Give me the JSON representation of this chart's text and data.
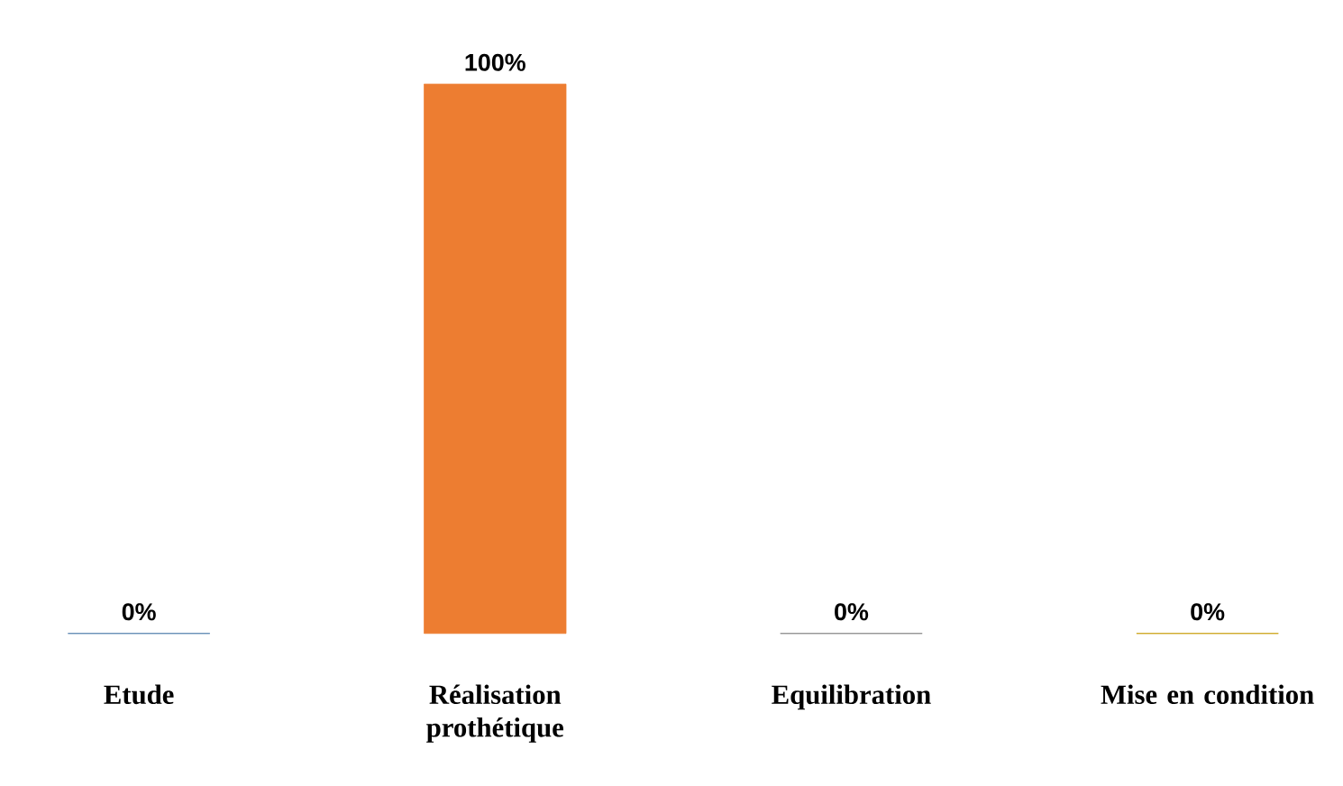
{
  "chart_data": {
    "type": "bar",
    "categories": [
      "Etude",
      "Réalisation prothétique",
      "Equilibration",
      "Mise en condition"
    ],
    "values": [
      0,
      100,
      0,
      0
    ],
    "colors": [
      "#4a7aa8",
      "#ed7d31",
      "#808080",
      "#c59a00"
    ],
    "value_labels": [
      "0%",
      "100%",
      "0%",
      "0%"
    ]
  }
}
